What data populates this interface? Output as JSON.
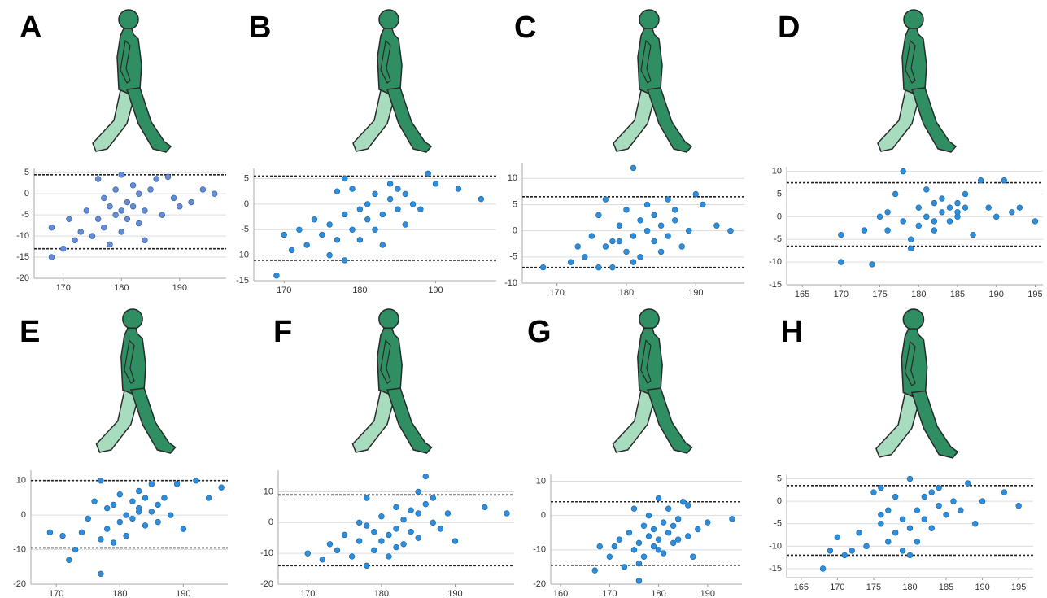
{
  "chart_data": [
    {
      "type": "scatter",
      "label": "A",
      "color": "#6a8ad8",
      "grid": true,
      "xlim": [
        165,
        198
      ],
      "ylim": [
        -20,
        6
      ],
      "xticks": [
        170,
        180,
        190
      ],
      "yticks": [
        -20,
        -15,
        -10,
        -5,
        0,
        5
      ],
      "hlines": [
        4.5,
        -13
      ],
      "x": [
        168,
        168,
        170,
        171,
        172,
        173,
        174,
        175,
        176,
        176,
        177,
        177,
        178,
        178,
        179,
        179,
        180,
        180,
        180,
        181,
        181,
        182,
        182,
        183,
        183,
        184,
        184,
        185,
        186,
        187,
        188,
        189,
        190,
        192,
        194,
        196
      ],
      "y": [
        -15,
        -8,
        -13,
        -6,
        -11,
        -9,
        -4,
        -10,
        -6,
        3.5,
        -1,
        -8,
        -3,
        -12,
        -5,
        1,
        4.5,
        -4,
        -9,
        -2,
        -6,
        -3,
        2,
        -7,
        0,
        -4,
        -11,
        1,
        3.5,
        -5,
        4,
        -1,
        -3,
        -2,
        1,
        0
      ]
    },
    {
      "type": "scatter",
      "label": "B",
      "color": "#2b8fde",
      "grid": true,
      "xlim": [
        166,
        198
      ],
      "ylim": [
        -15,
        7
      ],
      "xticks": [
        170,
        180,
        190
      ],
      "yticks": [
        -15,
        -10,
        -5,
        0,
        5
      ],
      "hlines": [
        5.5,
        -11
      ],
      "x": [
        169,
        170,
        171,
        172,
        173,
        174,
        175,
        176,
        176,
        177,
        177,
        178,
        178,
        179,
        179,
        180,
        180,
        181,
        181,
        182,
        182,
        183,
        183,
        184,
        184,
        185,
        185,
        186,
        186,
        187,
        188,
        189,
        190,
        193,
        196,
        178
      ],
      "y": [
        -14,
        -6,
        -9,
        -5,
        -8,
        -3,
        -6,
        -4,
        -10,
        2.5,
        -7,
        -2,
        -11,
        -5,
        3,
        -1,
        -7,
        -3,
        0,
        -5,
        2,
        -2,
        -8,
        1,
        4,
        -1,
        3,
        -4,
        2,
        0,
        -1,
        6,
        4,
        3,
        1,
        5
      ]
    },
    {
      "type": "scatter",
      "label": "C",
      "color": "#2b8fde",
      "grid": true,
      "xlim": [
        165,
        197
      ],
      "ylim": [
        -10,
        13
      ],
      "xticks": [
        170,
        180,
        190
      ],
      "yticks": [
        -10,
        -5,
        0,
        5,
        10
      ],
      "hlines": [
        6.5,
        -7
      ],
      "x": [
        168,
        172,
        173,
        174,
        175,
        176,
        176,
        177,
        178,
        178,
        179,
        180,
        180,
        181,
        181,
        182,
        182,
        183,
        183,
        184,
        184,
        185,
        185,
        186,
        186,
        187,
        187,
        188,
        189,
        190,
        191,
        193,
        195,
        181,
        177,
        179
      ],
      "y": [
        -7,
        -6,
        -3,
        -5,
        -1,
        -7,
        3,
        6,
        -2,
        -7,
        1,
        -4,
        4,
        12,
        -1,
        2,
        -5,
        0,
        5,
        -2,
        3,
        1,
        -4,
        6,
        -1,
        2,
        4,
        -3,
        0,
        7,
        5,
        1,
        0,
        -6,
        -3,
        -2
      ]
    },
    {
      "type": "scatter",
      "label": "D",
      "color": "#2b8fde",
      "grid": true,
      "xlim": [
        163,
        196
      ],
      "ylim": [
        -15,
        11
      ],
      "xticks": [
        165,
        170,
        175,
        180,
        185,
        190,
        195
      ],
      "yticks": [
        -15,
        -10,
        -5,
        0,
        5,
        10
      ],
      "hlines": [
        7.5,
        -6.5
      ],
      "x": [
        170,
        170,
        173,
        174,
        175,
        176,
        176,
        177,
        178,
        178,
        179,
        180,
        180,
        181,
        181,
        182,
        182,
        183,
        183,
        184,
        184,
        185,
        185,
        186,
        186,
        187,
        188,
        189,
        190,
        191,
        192,
        193,
        195,
        179,
        182,
        185
      ],
      "y": [
        -4,
        -10,
        -3,
        -10.5,
        0,
        -3,
        1,
        5,
        -1,
        10,
        -5,
        2,
        -2,
        6,
        0,
        3,
        -3,
        1,
        4,
        2,
        -1,
        3,
        0,
        5,
        2,
        -4,
        8,
        2,
        0,
        8,
        1,
        2,
        -1,
        -7,
        -1,
        1
      ]
    },
    {
      "type": "scatter",
      "label": "E",
      "color": "#2b8fde",
      "grid": true,
      "xlim": [
        166,
        197
      ],
      "ylim": [
        -20,
        13
      ],
      "xticks": [
        170,
        180,
        190
      ],
      "yticks": [
        -20,
        -10,
        0,
        10
      ],
      "hlines": [
        10,
        -9.5
      ],
      "x": [
        169,
        171,
        172,
        173,
        174,
        175,
        176,
        177,
        177,
        178,
        178,
        179,
        179,
        180,
        180,
        181,
        181,
        182,
        182,
        183,
        183,
        184,
        184,
        185,
        185,
        186,
        186,
        187,
        188,
        189,
        190,
        192,
        194,
        196,
        177,
        183
      ],
      "y": [
        -5,
        -6,
        -13,
        -10,
        -5,
        -1,
        4,
        -17,
        10,
        -4,
        2,
        -8,
        3,
        -2,
        6,
        0,
        -6,
        4,
        -1,
        2,
        7,
        -3,
        5,
        1,
        9,
        3,
        -2,
        5,
        0,
        9,
        -4,
        10,
        5,
        8,
        -7,
        1
      ]
    },
    {
      "type": "scatter",
      "label": "F",
      "color": "#2b8fde",
      "grid": true,
      "xlim": [
        166,
        198
      ],
      "ylim": [
        -20,
        17
      ],
      "xticks": [
        170,
        180,
        190
      ],
      "yticks": [
        -20,
        -10,
        0,
        10
      ],
      "hlines": [
        9,
        -14
      ],
      "x": [
        170,
        172,
        173,
        174,
        175,
        176,
        177,
        177,
        178,
        178,
        179,
        179,
        180,
        180,
        181,
        181,
        182,
        182,
        183,
        183,
        184,
        184,
        185,
        185,
        186,
        186,
        187,
        187,
        188,
        189,
        190,
        194,
        197,
        178,
        182,
        185
      ],
      "y": [
        -10,
        -12,
        -7,
        -9,
        -4,
        -11,
        -6,
        0,
        -14,
        8,
        -3,
        -9,
        -6,
        2,
        -4,
        -11,
        -2,
        5,
        -7,
        1,
        -3,
        4,
        3,
        -5,
        15,
        6,
        0,
        8,
        -2,
        3,
        -6,
        5,
        3,
        -1,
        -8,
        10
      ]
    },
    {
      "type": "scatter",
      "label": "G",
      "color": "#2b8fde",
      "grid": true,
      "xlim": [
        158,
        197
      ],
      "ylim": [
        -20,
        12
      ],
      "xticks": [
        160,
        170,
        180,
        190
      ],
      "yticks": [
        -20,
        -10,
        0,
        10
      ],
      "hlines": [
        4,
        -14.5
      ],
      "x": [
        167,
        168,
        170,
        171,
        172,
        173,
        174,
        175,
        175,
        176,
        176,
        177,
        177,
        178,
        178,
        179,
        179,
        180,
        180,
        181,
        181,
        182,
        182,
        183,
        183,
        184,
        185,
        186,
        186,
        187,
        188,
        190,
        195,
        176,
        180,
        184
      ],
      "y": [
        -16,
        -9,
        -12,
        -9,
        -7,
        -15,
        -5,
        -10,
        2,
        -19,
        -8,
        -3,
        -12,
        -6,
        0,
        -9,
        -4,
        -7,
        5,
        -2,
        -11,
        -5,
        2,
        -8,
        -3,
        -1,
        4,
        -6,
        3,
        -12,
        -4,
        -2,
        -1,
        -14,
        -10,
        -7
      ]
    },
    {
      "type": "scatter",
      "label": "H",
      "color": "#2b8fde",
      "grid": true,
      "xlim": [
        163,
        197
      ],
      "ylim": [
        -17,
        6
      ],
      "xticks": [
        165,
        170,
        175,
        180,
        185,
        190,
        195
      ],
      "yticks": [
        -15,
        -10,
        -5,
        0,
        5
      ],
      "hlines": [
        3.5,
        -12
      ],
      "x": [
        168,
        169,
        170,
        171,
        172,
        173,
        174,
        175,
        176,
        176,
        177,
        177,
        178,
        178,
        179,
        179,
        180,
        180,
        181,
        181,
        182,
        182,
        183,
        183,
        184,
        184,
        185,
        186,
        187,
        188,
        189,
        190,
        193,
        195,
        180,
        176
      ],
      "y": [
        -15,
        -11,
        -8,
        -12,
        -11,
        -7,
        -10,
        2,
        -5,
        3,
        -9,
        -2,
        -7,
        1,
        -11,
        -4,
        5,
        -6,
        -2,
        -9,
        1,
        -4,
        2,
        -6,
        -1,
        3,
        -3,
        0,
        -2,
        4,
        -5,
        0,
        2,
        -1,
        -12,
        -3
      ]
    }
  ]
}
